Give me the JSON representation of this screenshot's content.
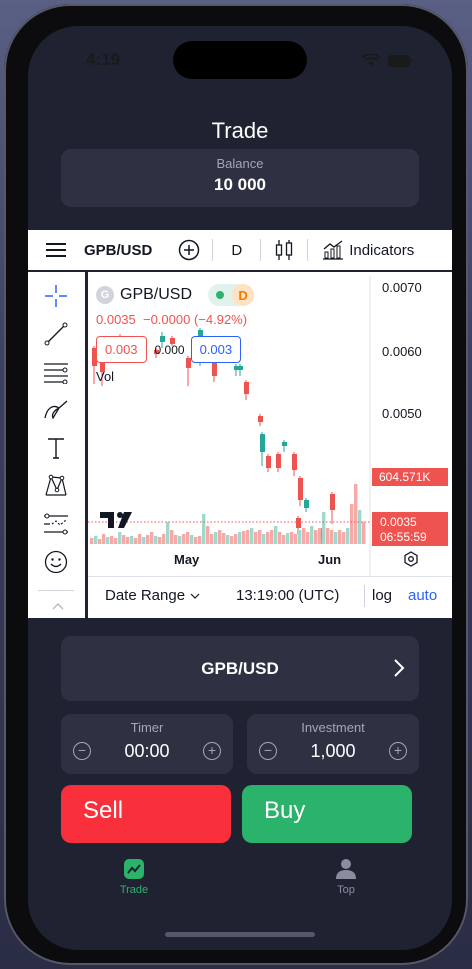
{
  "status": {
    "time": "4:19"
  },
  "header": {
    "title": "Trade"
  },
  "balance": {
    "label": "Balance",
    "value": "10 000"
  },
  "chart_toolbar": {
    "symbol": "GPB/USD",
    "interval": "D",
    "indicators_label": "Indicators"
  },
  "chart_legend": {
    "symbol": "GPB/USD",
    "source_badge": "G",
    "interval_badge": "D",
    "ohlc_line": "0.0035  −0.0000 (−4.92%)",
    "sell_price": "0.003",
    "spread": "0.000",
    "buy_price": "0.003",
    "volume_label": "Vol"
  },
  "chart_data": {
    "type": "candlestick",
    "y_ticks": [
      "0.0070",
      "0.0060",
      "0.0050"
    ],
    "x_ticks": [
      "May",
      "Jun"
    ],
    "volume_badge": "604.571K",
    "price_badge": "0.0035",
    "countdown_badge": "06:55:59",
    "colors": {
      "up": "#26a69a",
      "down": "#ef5350"
    }
  },
  "chart_footer": {
    "date_range": "Date Range",
    "time": "13:19:00 (UTC)",
    "log": "log",
    "auto": "auto"
  },
  "trade": {
    "pair": "GPB/USD",
    "timer": {
      "label": "Timer",
      "value": "00:00"
    },
    "investment": {
      "label": "Investment",
      "value": "1,000"
    },
    "sell_label": "Sell",
    "buy_label": "Buy"
  },
  "nav": [
    {
      "label": "Trade",
      "icon": "chart-icon",
      "active": true
    },
    {
      "label": "Top",
      "icon": "user-icon",
      "active": false
    }
  ]
}
